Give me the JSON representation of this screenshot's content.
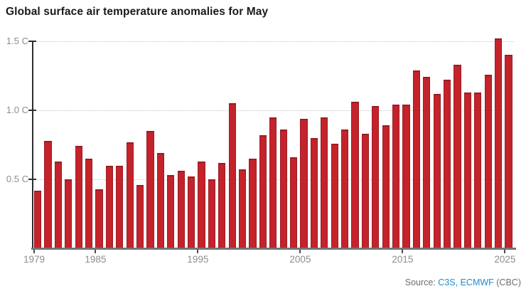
{
  "title": "Global surface air temperature anomalies for May",
  "source": {
    "prefix": "Source: ",
    "link1": "C3S,",
    "link2": "ECMWF",
    "suffix": " (CBC)"
  },
  "colors": {
    "bar": "#c4232b",
    "bar_edge": "#9b1c23",
    "link_blue": "#1f8cce",
    "grid": "#c6c6c6",
    "axis_dark": "#2d2d2d",
    "axis_gray": "#747474",
    "tick_dark": "#4d4d4d",
    "muted_text": "#8d8d8d",
    "source_gray": "#6e6e6e",
    "title_text": "#1a1a1a"
  },
  "chart_data": {
    "type": "bar",
    "title": "Global surface air temperature anomalies for May",
    "unit": "C",
    "categories": [
      1979,
      1980,
      1981,
      1982,
      1983,
      1984,
      1985,
      1986,
      1987,
      1988,
      1989,
      1990,
      1991,
      1992,
      1993,
      1994,
      1995,
      1996,
      1997,
      1998,
      1999,
      2000,
      2001,
      2002,
      2003,
      2004,
      2005,
      2006,
      2007,
      2008,
      2009,
      2010,
      2011,
      2012,
      2013,
      2014,
      2015,
      2016,
      2017,
      2018,
      2019,
      2020,
      2021,
      2022,
      2023,
      2024,
      2025
    ],
    "values": [
      0.42,
      0.78,
      0.63,
      0.5,
      0.74,
      0.65,
      0.43,
      0.6,
      0.6,
      0.77,
      0.46,
      0.85,
      0.69,
      0.53,
      0.56,
      0.52,
      0.63,
      0.5,
      0.62,
      1.05,
      0.57,
      0.65,
      0.82,
      0.95,
      0.86,
      0.66,
      0.94,
      0.8,
      0.95,
      0.76,
      0.86,
      1.06,
      0.83,
      1.03,
      0.89,
      1.04,
      1.04,
      1.29,
      1.24,
      1.12,
      1.22,
      1.33,
      1.13,
      1.13,
      1.26,
      1.52,
      1.4
    ],
    "xlabel": "",
    "ylabel": "",
    "yticks": [
      {
        "value": 1.5,
        "label": "1.5 C"
      },
      {
        "value": 1.0,
        "label": "1.0 C"
      },
      {
        "value": 0.5,
        "label": "0.5 C"
      }
    ],
    "xticks": [
      1979,
      1985,
      1995,
      2005,
      2015,
      2025
    ],
    "ylim": [
      0,
      1.5
    ],
    "grid": "horizontal-dotted",
    "legend": "none"
  }
}
